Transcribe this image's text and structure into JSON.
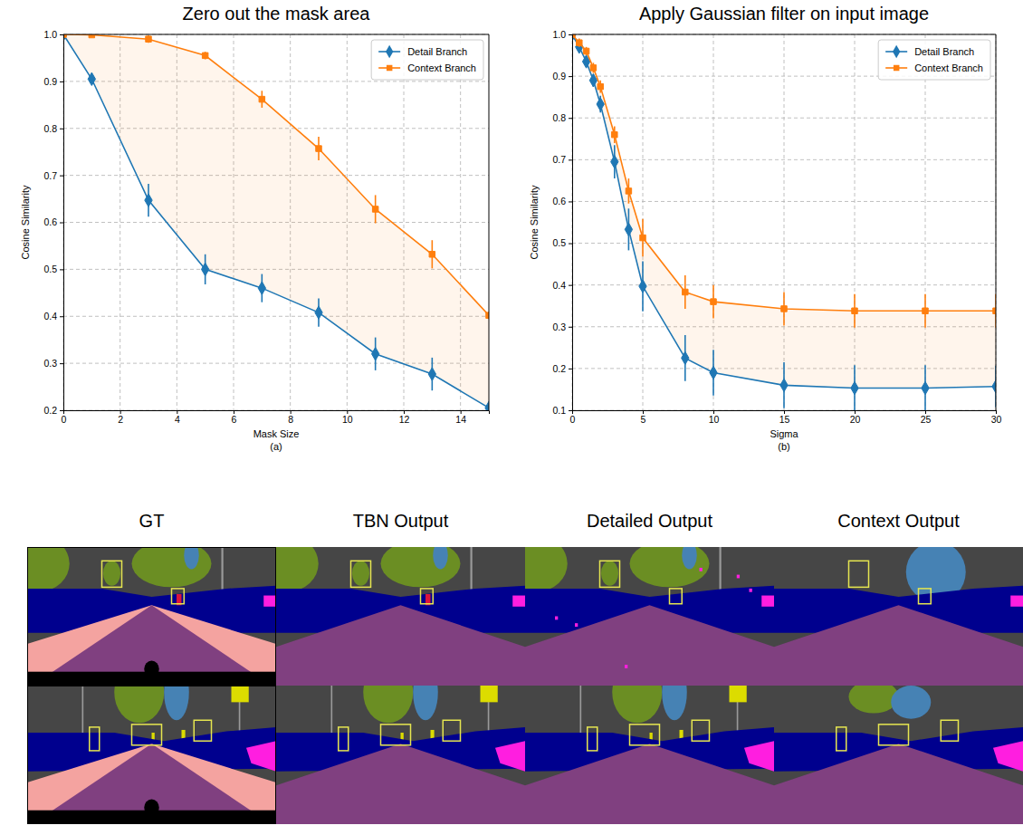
{
  "chart_data": [
    {
      "type": "line",
      "title": "Zero out the mask area",
      "x_label": "Mask Size",
      "annotation": "(a)",
      "y_label": "Cosine Similarity",
      "x": [
        0,
        1,
        3,
        5,
        7,
        9,
        11,
        13,
        15
      ],
      "series": [
        {
          "name": "Detail Branch",
          "color": "#1f77b4",
          "marker": "diamond",
          "line_style": "solid",
          "values": [
            1.0,
            0.905,
            0.647,
            0.5,
            0.46,
            0.408,
            0.32,
            0.277,
            0.205
          ],
          "errors": [
            0,
            0.005,
            0.035,
            0.032,
            0.03,
            0.03,
            0.035,
            0.035,
            0.005
          ]
        },
        {
          "name": "Context Branch",
          "color": "#ff7f0e",
          "marker": "square",
          "line_style": "solid",
          "values": [
            1.0,
            0.999,
            0.99,
            0.955,
            0.862,
            0.757,
            0.628,
            0.532,
            0.402
          ],
          "errors": [
            0,
            0.003,
            0.008,
            0.008,
            0.018,
            0.025,
            0.03,
            0.03,
            0.008
          ]
        }
      ],
      "xlim": [
        0,
        15
      ],
      "xticks": [
        0,
        2,
        4,
        6,
        8,
        10,
        12,
        14
      ],
      "ylim": [
        0.2,
        1.0
      ],
      "yticks": [
        0.2,
        0.3,
        0.4,
        0.5,
        0.6,
        0.7,
        0.8,
        0.9,
        {
          "value": 1,
          "label": "1.0"
        }
      ],
      "grid": true,
      "legend": "upper right"
    },
    {
      "type": "line",
      "title": "Apply Gaussian filter on input image",
      "x_label": "Sigma",
      "annotation": "(b)",
      "y_label": "Cosine Similarity",
      "x": [
        0,
        0.5,
        1,
        1.5,
        2,
        3,
        4,
        5,
        8,
        10,
        15,
        20,
        25,
        30
      ],
      "series": [
        {
          "name": "Detail Branch",
          "color": "#1f77b4",
          "marker": "diamond",
          "line_style": "solid",
          "values": [
            1.0,
            0.97,
            0.935,
            0.89,
            0.833,
            0.695,
            0.533,
            0.397,
            0.225,
            0.19,
            0.16,
            0.153,
            0.153,
            0.157
          ],
          "errors": [
            0,
            0.01,
            0.01,
            0.015,
            0.02,
            0.04,
            0.05,
            0.06,
            0.055,
            0.055,
            0.055,
            0.055,
            0.055,
            0.05
          ]
        },
        {
          "name": "Context Branch",
          "color": "#ff7f0e",
          "marker": "square",
          "line_style": "solid",
          "values": [
            1.0,
            0.98,
            0.96,
            0.92,
            0.875,
            0.76,
            0.625,
            0.513,
            0.383,
            0.36,
            0.343,
            0.338,
            0.338,
            0.338
          ],
          "errors": [
            0,
            0.01,
            0.01,
            0.012,
            0.015,
            0.02,
            0.03,
            0.045,
            0.04,
            0.04,
            0.04,
            0.04,
            0.04,
            0.04
          ]
        }
      ],
      "xlim": [
        0,
        30
      ],
      "xticks": [
        0,
        5,
        10,
        15,
        20,
        25,
        30
      ],
      "ylim": [
        0.1,
        1.0
      ],
      "yticks": [
        0.1,
        0.2,
        0.3,
        0.4,
        0.5,
        0.6,
        0.7,
        0.8,
        0.9,
        {
          "value": 1,
          "label": "1.0"
        }
      ],
      "grid": true,
      "legend": "upper right"
    }
  ],
  "image_grid": {
    "columns": [
      "GT",
      "TBN Output",
      "Detailed Output",
      "Context Output"
    ]
  }
}
